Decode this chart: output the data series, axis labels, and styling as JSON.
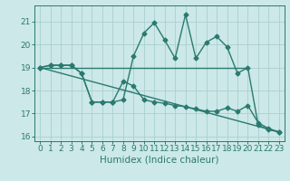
{
  "xlabel": "Humidex (Indice chaleur)",
  "x": [
    0,
    1,
    2,
    3,
    4,
    5,
    6,
    7,
    8,
    9,
    10,
    11,
    12,
    13,
    14,
    15,
    16,
    17,
    18,
    19,
    20,
    21,
    22,
    23
  ],
  "line1": [
    19.0,
    19.1,
    19.1,
    19.1,
    18.75,
    17.5,
    17.5,
    17.5,
    17.6,
    19.5,
    20.5,
    20.95,
    20.2,
    19.4,
    21.3,
    19.4,
    20.1,
    20.35,
    19.9,
    18.75,
    19.0,
    16.5,
    16.3,
    16.2
  ],
  "line2": [
    19.0,
    19.0,
    19.0,
    19.0,
    19.0,
    19.0,
    19.0,
    19.0,
    19.0,
    19.0,
    19.0,
    19.0,
    19.0,
    19.0,
    19.0,
    19.0,
    19.0,
    19.0,
    19.0,
    19.0,
    19.0,
    null,
    null,
    null
  ],
  "line3_x": [
    0,
    23
  ],
  "line3_y": [
    19.0,
    16.2
  ],
  "line4": [
    19.0,
    19.1,
    19.1,
    19.1,
    18.75,
    17.5,
    17.5,
    17.5,
    18.4,
    18.2,
    17.6,
    17.5,
    17.45,
    17.35,
    17.3,
    17.2,
    17.1,
    17.1,
    17.25,
    17.1,
    17.35,
    16.6,
    16.35,
    16.2
  ],
  "color": "#2a7a70",
  "bg_color": "#cce8e8",
  "grid_color": "#aacfcf",
  "ylim": [
    15.8,
    21.7
  ],
  "yticks": [
    16,
    17,
    18,
    19,
    20,
    21
  ],
  "xlim": [
    -0.5,
    23.5
  ],
  "xticks": [
    0,
    1,
    2,
    3,
    4,
    5,
    6,
    7,
    8,
    9,
    10,
    11,
    12,
    13,
    14,
    15,
    16,
    17,
    18,
    19,
    20,
    21,
    22,
    23
  ],
  "xlabel_fontsize": 7.5,
  "tick_fontsize": 6.5,
  "marker": "D",
  "markersize": 2.5,
  "linewidth": 1.0
}
